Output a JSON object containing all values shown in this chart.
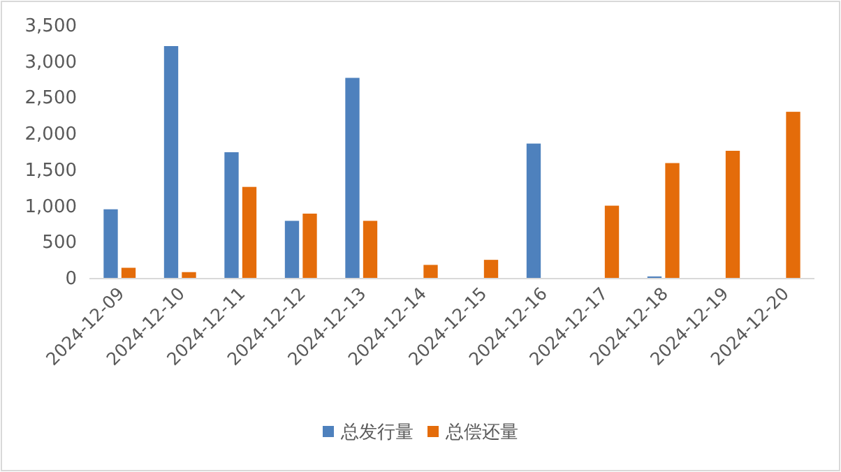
{
  "chart_data": {
    "type": "bar",
    "categories": [
      "2024-12-09",
      "2024-12-10",
      "2024-12-11",
      "2024-12-12",
      "2024-12-13",
      "2024-12-14",
      "2024-12-15",
      "2024-12-16",
      "2024-12-17",
      "2024-12-18",
      "2024-12-19",
      "2024-12-20"
    ],
    "series": [
      {
        "name": "总发行量",
        "color": "#4e81bd",
        "values": [
          950,
          3210,
          1740,
          790,
          2770,
          null,
          null,
          1860,
          null,
          20,
          null,
          null
        ]
      },
      {
        "name": "总偿还量",
        "color": "#e46c0a",
        "values": [
          140,
          80,
          1260,
          890,
          790,
          180,
          250,
          null,
          1000,
          1590,
          1760,
          2300
        ]
      }
    ],
    "ylim": [
      0,
      3500
    ],
    "yticks": [
      {
        "value": 0,
        "label": "0"
      },
      {
        "value": 500,
        "label": "500"
      },
      {
        "value": 1000,
        "label": "1,000"
      },
      {
        "value": 1500,
        "label": "1,500"
      },
      {
        "value": 2000,
        "label": "2,000"
      },
      {
        "value": 2500,
        "label": "2,500"
      },
      {
        "value": 3000,
        "label": "3,000"
      },
      {
        "value": 3500,
        "label": "3,500"
      }
    ],
    "grid": false,
    "legend": "bottom"
  }
}
